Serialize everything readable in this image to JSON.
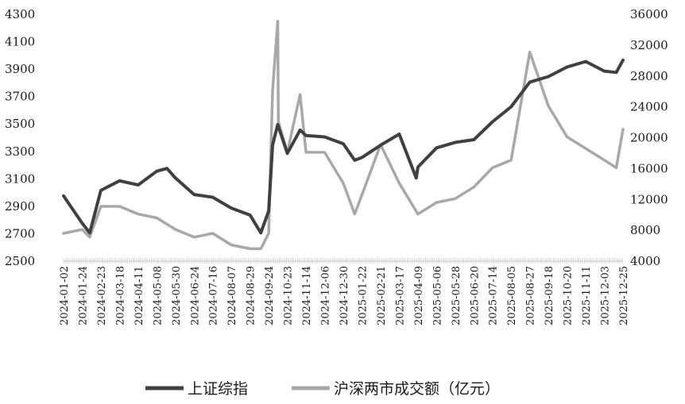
{
  "chart_data": {
    "type": "line",
    "title": "",
    "xlabel": "",
    "ylabel": "",
    "y_left_lim": [
      2500,
      4300
    ],
    "y_left_ticks": [
      2500,
      2700,
      2900,
      3100,
      3300,
      3500,
      3700,
      3900,
      4100,
      4300
    ],
    "y_right_lim": [
      4000,
      36000
    ],
    "y_right_ticks": [
      4000,
      8000,
      12000,
      16000,
      20000,
      24000,
      28000,
      32000,
      36000
    ],
    "x_tick_labels": [
      "2024-01-02",
      "2024-01-24",
      "2024-02-23",
      "2024-03-18",
      "2024-04-11",
      "2024-05-08",
      "2024-05-30",
      "2024-06-24",
      "2024-07-16",
      "2024-08-07",
      "2024-08-29",
      "2024-09-24",
      "2024-10-23",
      "2024-11-14",
      "2024-12-06",
      "2024-12-30",
      "2025-01-22",
      "2025-02-21",
      "2025-03-17",
      "2025-04-09",
      "2025-05-06",
      "2025-05-28",
      "2025-06-20",
      "2025-07-14",
      "2025-08-05",
      "2025-08-27",
      "2025-09-18",
      "2025-10-20",
      "2025-11-11",
      "2025-12-03",
      "2025-12-25"
    ],
    "grid": false,
    "legend_position": "bottom",
    "series": [
      {
        "name": "上证综指",
        "axis": "left",
        "color": "#404040",
        "x": [
          "2024-01-02",
          "2024-01-24",
          "2024-02-05",
          "2024-02-23",
          "2024-03-18",
          "2024-04-11",
          "2024-05-08",
          "2024-05-20",
          "2024-05-30",
          "2024-06-24",
          "2024-07-16",
          "2024-08-07",
          "2024-08-29",
          "2024-09-13",
          "2024-09-24",
          "2024-09-30",
          "2024-10-08",
          "2024-10-23",
          "2024-11-07",
          "2024-11-14",
          "2024-12-06",
          "2024-12-30",
          "2025-01-13",
          "2025-01-22",
          "2025-02-21",
          "2025-03-17",
          "2025-04-07",
          "2025-04-09",
          "2025-05-06",
          "2025-05-28",
          "2025-06-20",
          "2025-07-14",
          "2025-08-05",
          "2025-08-27",
          "2025-09-18",
          "2025-10-20",
          "2025-11-11",
          "2025-12-03",
          "2025-12-17",
          "2025-12-25"
        ],
        "values": [
          2970,
          2770,
          2700,
          3010,
          3080,
          3050,
          3150,
          3170,
          3100,
          2980,
          2960,
          2880,
          2830,
          2700,
          2860,
          3340,
          3490,
          3280,
          3450,
          3410,
          3400,
          3350,
          3230,
          3250,
          3340,
          3420,
          3100,
          3180,
          3320,
          3360,
          3380,
          3510,
          3620,
          3800,
          3840,
          3910,
          3950,
          3880,
          3870,
          3960
        ]
      },
      {
        "name": "沪深两市成交额（亿元）",
        "axis": "right",
        "color": "#a8a8a8",
        "x": [
          "2024-01-02",
          "2024-01-24",
          "2024-02-05",
          "2024-02-23",
          "2024-03-18",
          "2024-04-11",
          "2024-05-08",
          "2024-05-30",
          "2024-06-24",
          "2024-07-16",
          "2024-08-07",
          "2024-08-29",
          "2024-09-13",
          "2024-09-24",
          "2024-09-30",
          "2024-10-08",
          "2024-10-09",
          "2024-10-23",
          "2024-11-07",
          "2024-11-14",
          "2024-12-06",
          "2024-12-30",
          "2025-01-13",
          "2025-01-22",
          "2025-02-21",
          "2025-03-17",
          "2025-04-09",
          "2025-05-06",
          "2025-05-28",
          "2025-06-20",
          "2025-07-14",
          "2025-08-05",
          "2025-08-27",
          "2025-09-18",
          "2025-10-20",
          "2025-11-11",
          "2025-12-03",
          "2025-12-17",
          "2025-12-25"
        ],
        "values": [
          7500,
          8000,
          7000,
          11000,
          11000,
          10000,
          9500,
          8000,
          7000,
          7500,
          6000,
          5500,
          5500,
          7500,
          26000,
          35000,
          22000,
          18000,
          25500,
          18000,
          18000,
          14000,
          10000,
          12500,
          19000,
          14000,
          10000,
          11500,
          12000,
          13500,
          16000,
          17000,
          31000,
          24000,
          20000,
          18500,
          17000,
          16000,
          21000
        ]
      }
    ]
  },
  "legend": {
    "items": [
      {
        "label": "上证综指",
        "color": "#404040"
      },
      {
        "label": "沪深两市成交额（亿元）",
        "color": "#a8a8a8"
      }
    ]
  }
}
